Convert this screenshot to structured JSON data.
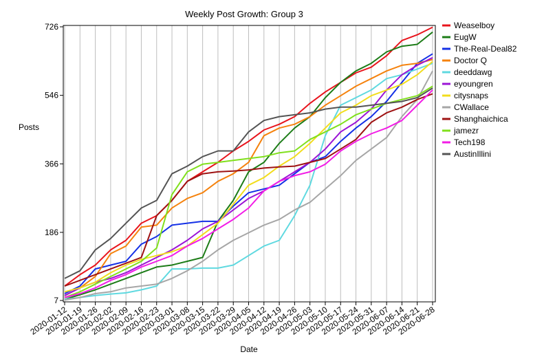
{
  "chart_data": {
    "type": "line",
    "title": "Weekly Post Growth: Group 3",
    "xlabel": "Date",
    "ylabel": "Posts",
    "ylim": [
      7,
      726
    ],
    "yticks": [
      7,
      186,
      366,
      546,
      726
    ],
    "grid": "vertical",
    "legend_position": "top-right",
    "x": [
      "2020-01-12",
      "2020-01-19",
      "2020-01-26",
      "2020-02-02",
      "2020-02-09",
      "2020-02-16",
      "2020-02-23",
      "2020-03-01",
      "2020-03-08",
      "2020-03-15",
      "2020-03-22",
      "2020-03-29",
      "2020-04-05",
      "2020-04-12",
      "2020-04-19",
      "2020-04-26",
      "2020-05-03",
      "2020-05-10",
      "2020-05-17",
      "2020-05-24",
      "2020-05-31",
      "2020-06-07",
      "2020-06-14",
      "2020-06-21",
      "2020-06-28"
    ],
    "series": [
      {
        "name": "Weaselboy",
        "color": "#e8141c",
        "values": [
          45,
          75,
          100,
          140,
          165,
          210,
          230,
          270,
          320,
          345,
          370,
          400,
          425,
          455,
          470,
          490,
          525,
          555,
          580,
          605,
          620,
          650,
          690,
          705,
          725
        ]
      },
      {
        "name": "EugW",
        "color": "#1c7c17",
        "values": [
          10,
          22,
          35,
          50,
          65,
          80,
          95,
          100,
          110,
          120,
          215,
          270,
          345,
          370,
          420,
          460,
          490,
          540,
          580,
          610,
          630,
          660,
          675,
          680,
          712
        ]
      },
      {
        "name": "The-Real-Deal82",
        "color": "#1430e6",
        "values": [
          25,
          45,
          90,
          100,
          110,
          155,
          175,
          205,
          210,
          215,
          215,
          255,
          290,
          300,
          310,
          340,
          370,
          385,
          425,
          460,
          490,
          530,
          580,
          630,
          655
        ]
      },
      {
        "name": "Doctor Q",
        "color": "#f5820d",
        "values": [
          20,
          40,
          70,
          130,
          150,
          200,
          205,
          250,
          275,
          290,
          320,
          340,
          370,
          440,
          460,
          470,
          490,
          520,
          545,
          570,
          590,
          610,
          625,
          630,
          640
        ]
      },
      {
        "name": "deeddawg",
        "color": "#5fd9e0",
        "values": [
          10,
          15,
          20,
          24,
          27,
          35,
          45,
          90,
          90,
          92,
          92,
          100,
          125,
          150,
          165,
          230,
          310,
          440,
          520,
          540,
          560,
          590,
          600,
          615,
          630
        ]
      },
      {
        "name": "eyoungren",
        "color": "#9b14d6",
        "values": [
          20,
          40,
          55,
          65,
          80,
          100,
          120,
          140,
          165,
          195,
          215,
          245,
          275,
          295,
          320,
          345,
          370,
          405,
          450,
          475,
          510,
          560,
          600,
          625,
          645
        ]
      },
      {
        "name": "citysnaps",
        "color": "#f2dd1c",
        "values": [
          30,
          40,
          55,
          80,
          100,
          115,
          125,
          135,
          150,
          180,
          210,
          260,
          310,
          330,
          360,
          385,
          420,
          460,
          500,
          520,
          545,
          560,
          575,
          600,
          635
        ]
      },
      {
        "name": "CWallace",
        "color": "#a6a6a6",
        "values": [
          8,
          15,
          25,
          30,
          40,
          45,
          50,
          65,
          85,
          110,
          140,
          165,
          185,
          205,
          220,
          245,
          265,
          300,
          335,
          375,
          405,
          435,
          490,
          535,
          610
        ]
      },
      {
        "name": "Shanghaichica",
        "color": "#9e1212",
        "values": [
          45,
          60,
          75,
          90,
          105,
          120,
          230,
          270,
          320,
          340,
          345,
          347,
          350,
          355,
          358,
          360,
          370,
          380,
          405,
          430,
          475,
          500,
          515,
          535,
          550
        ]
      },
      {
        "name": "jamezr",
        "color": "#80e01c",
        "values": [
          15,
          30,
          50,
          70,
          90,
          110,
          145,
          285,
          345,
          365,
          370,
          375,
          380,
          385,
          395,
          400,
          430,
          450,
          470,
          495,
          510,
          525,
          535,
          545,
          570
        ]
      },
      {
        "name": "Tech198",
        "color": "#f21ce6",
        "values": [
          15,
          25,
          40,
          60,
          75,
          95,
          110,
          125,
          150,
          170,
          195,
          220,
          250,
          295,
          320,
          335,
          345,
          365,
          400,
          425,
          445,
          460,
          480,
          520,
          560
        ]
      },
      {
        "name": "AustinIllini",
        "color": "#545454",
        "values": [
          65,
          85,
          140,
          170,
          210,
          250,
          270,
          340,
          360,
          385,
          400,
          400,
          450,
          480,
          490,
          495,
          500,
          510,
          515,
          515,
          520,
          525,
          530,
          540,
          565
        ]
      }
    ]
  }
}
